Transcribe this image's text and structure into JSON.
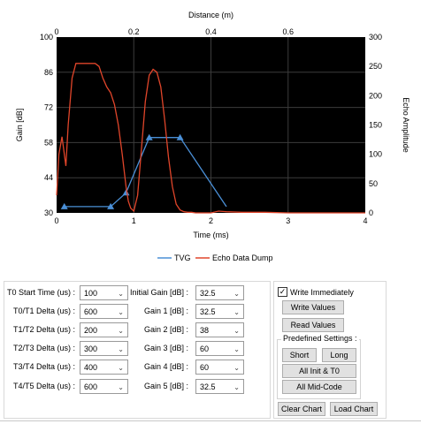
{
  "chart_data": {
    "type": "line",
    "x_top_label": "Distance (m)",
    "x_top_ticks": [
      "0",
      "0.2",
      "0.4",
      "0.6"
    ],
    "xlabel": "Time (ms)",
    "x_ticks": [
      "0",
      "1",
      "2",
      "3",
      "4"
    ],
    "xlim": [
      0,
      4
    ],
    "ylabel_left": "Gain [dB]",
    "y_left_ticks": [
      "30",
      "44",
      "58",
      "72",
      "86",
      "100"
    ],
    "ylim_left": [
      30,
      100
    ],
    "ylabel_right": "Echo Amplitude",
    "y_right_ticks": [
      "0",
      "50",
      "100",
      "150",
      "200",
      "250",
      "300"
    ],
    "ylim_right": [
      0,
      300
    ],
    "background": "#000000",
    "grid": true,
    "series": [
      {
        "name": "TVG",
        "color": "#4a8fd6",
        "axis": "left",
        "x": [
          0.1,
          0.7,
          0.9,
          1.2,
          1.6,
          2.2
        ],
        "y": [
          32.5,
          32.5,
          38,
          60,
          60,
          32.5
        ],
        "markers": [
          true,
          true,
          true,
          true,
          true,
          false
        ]
      },
      {
        "name": "Echo Data Dump",
        "color": "#e0452a",
        "axis": "right",
        "x": [
          0,
          0.03,
          0.07,
          0.12,
          0.15,
          0.2,
          0.25,
          0.3,
          0.4,
          0.5,
          0.55,
          0.6,
          0.65,
          0.7,
          0.75,
          0.8,
          0.85,
          0.9,
          0.93,
          0.96,
          1.0,
          1.05,
          1.1,
          1.15,
          1.2,
          1.25,
          1.3,
          1.35,
          1.4,
          1.45,
          1.5,
          1.55,
          1.6,
          1.65,
          1.7,
          1.75,
          1.8,
          1.85,
          1.9,
          2.0,
          2.1,
          2.2,
          2.4,
          2.7,
          3.0,
          3.5,
          4.0
        ],
        "y": [
          30,
          100,
          130,
          80,
          150,
          230,
          255,
          255,
          255,
          255,
          250,
          230,
          215,
          205,
          185,
          150,
          100,
          45,
          20,
          8,
          3,
          30,
          110,
          190,
          235,
          245,
          240,
          215,
          160,
          95,
          45,
          15,
          5,
          2,
          1,
          1,
          0,
          0,
          0,
          0,
          3,
          2,
          1,
          1,
          0,
          0,
          0
        ]
      }
    ],
    "legend": {
      "placement": "bottom-center",
      "items": [
        "TVG",
        "Echo Data Dump"
      ]
    }
  },
  "settings": {
    "rows": [
      {
        "label": "T0 Start Time (us) :",
        "value": "100",
        "gain_label": "Initial Gain [dB] :",
        "gain_value": "32.5"
      },
      {
        "label": "T0/T1 Delta (us) :",
        "value": "600",
        "gain_label": "Gain 1 [dB] :",
        "gain_value": "32.5"
      },
      {
        "label": "T1/T2 Delta (us) :",
        "value": "200",
        "gain_label": "Gain 2 [dB] :",
        "gain_value": "38"
      },
      {
        "label": "T2/T3 Delta (us) :",
        "value": "300",
        "gain_label": "Gain 3 [dB] :",
        "gain_value": "60"
      },
      {
        "label": "T3/T4 Delta (us) :",
        "value": "400",
        "gain_label": "Gain 4 [dB] :",
        "gain_value": "60"
      },
      {
        "label": "T4/T5 Delta (us) :",
        "value": "600",
        "gain_label": "Gain 5 [dB] :",
        "gain_value": "32.5"
      }
    ]
  },
  "actions": {
    "write_immediately_label": "Write Immediately",
    "write_immediately_checked": "✓",
    "write_values": "Write Values",
    "read_values": "Read Values",
    "predefined_title": "Predefined Settings :",
    "short": "Short",
    "long": "Long",
    "all_init_t0": "All Init & T0",
    "all_mid_code": "All Mid-Code",
    "clear_chart": "Clear Chart",
    "load_chart": "Load Chart"
  },
  "icons": {
    "combo_arrow": "chevron-down-icon",
    "check": "checkmark-icon"
  }
}
